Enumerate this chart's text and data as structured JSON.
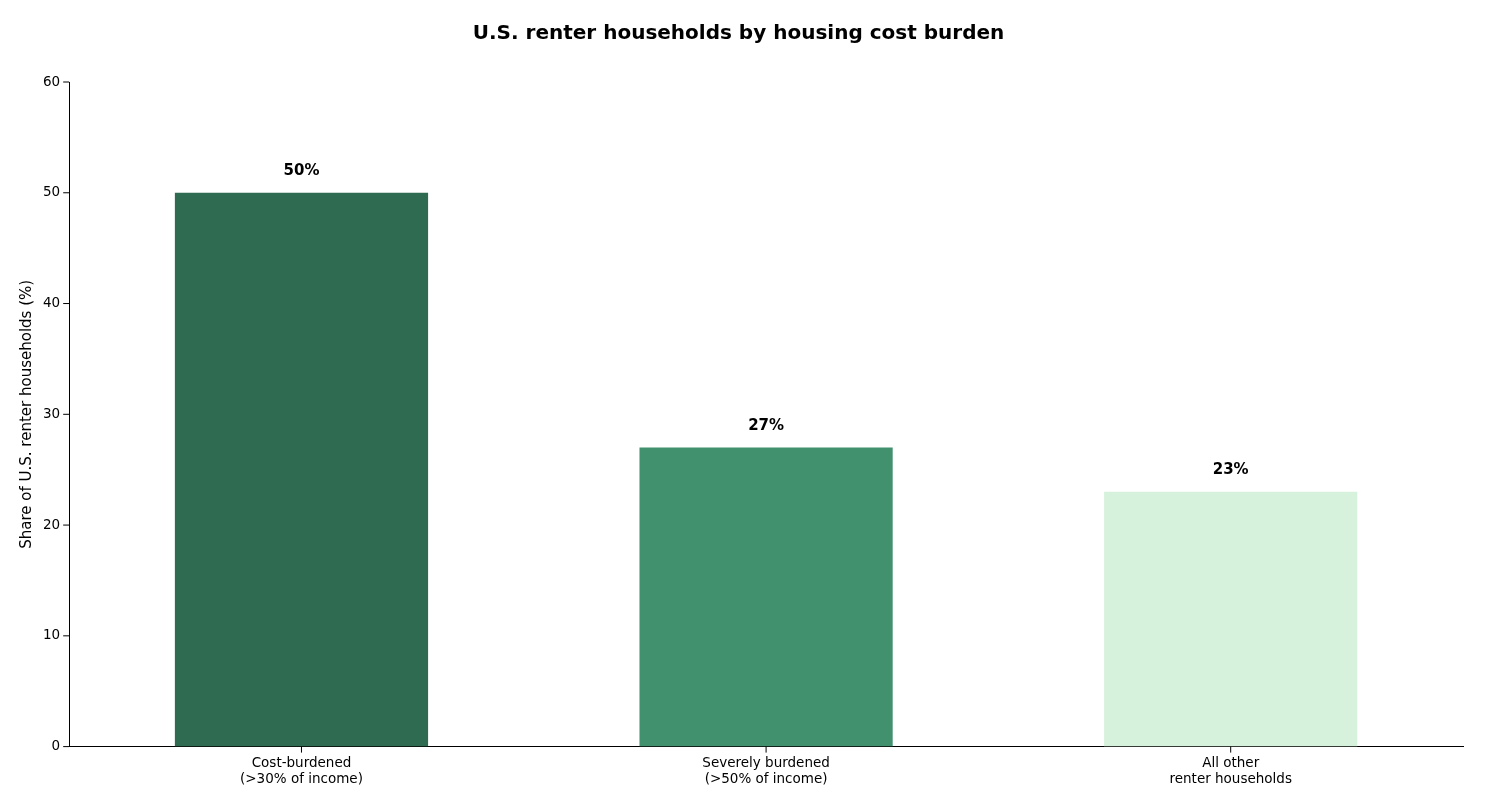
{
  "chart_data": {
    "type": "bar",
    "title": "U.S. renter households by housing cost burden",
    "ylabel": "Share of U.S. renter households (%)",
    "categories": [
      "Cost-burdened\n(>30% of income)",
      "Severely burdened\n(>50% of income)",
      "All other\nrenter households"
    ],
    "values": [
      50,
      27,
      23
    ],
    "colors": [
      "#2e6b51",
      "#41916e",
      "#d7f2dc"
    ],
    "value_labels": [
      "50%",
      "27%",
      "23%"
    ],
    "ylim": [
      0,
      60
    ],
    "yticks": [
      0,
      10,
      20,
      30,
      40,
      50,
      60
    ],
    "grid": false,
    "legend": false
  }
}
